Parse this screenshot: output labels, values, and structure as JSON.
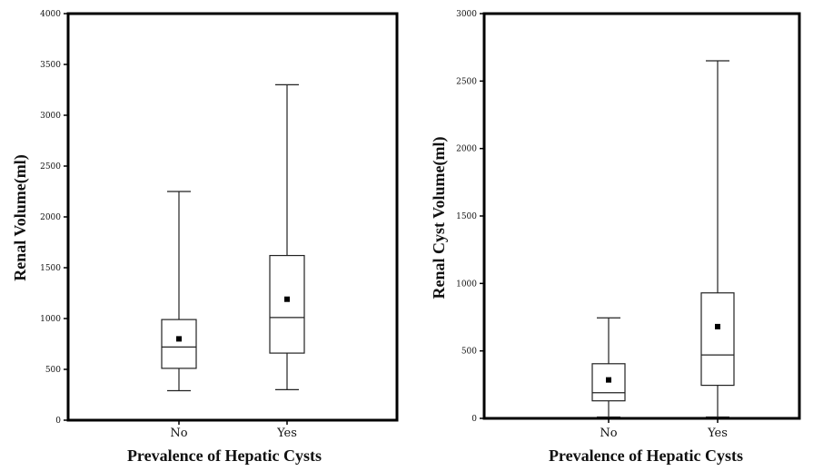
{
  "chart_data": [
    {
      "type": "box",
      "xlabel": "Prevalence of Hepatic Cysts",
      "ylabel": "Renal Volume(ml)",
      "ylim": [
        0,
        4000
      ],
      "yticks": [
        0,
        500,
        1000,
        1500,
        2000,
        2500,
        3000,
        3500,
        4000
      ],
      "ytick_labels": [
        "0",
        "500",
        "1000",
        "1500",
        "2000",
        "2500",
        "3000",
        "3500",
        "4000"
      ],
      "categories": [
        "No",
        "Yes"
      ],
      "boxes": [
        {
          "category": "No",
          "min": 290,
          "q1": 510,
          "median": 720,
          "q3": 990,
          "max": 2250,
          "mean": 800
        },
        {
          "category": "Yes",
          "min": 300,
          "q1": 660,
          "median": 1010,
          "q3": 1620,
          "max": 3300,
          "mean": 1190
        }
      ]
    },
    {
      "type": "box",
      "xlabel": "Prevalence of Hepatic Cysts",
      "ylabel": "Renal Cyst Volume(ml)",
      "ylim": [
        0,
        3000
      ],
      "yticks": [
        0,
        500,
        1000,
        1500,
        2000,
        2500,
        3000
      ],
      "ytick_labels": [
        "0",
        "500",
        "1000",
        "1500",
        "2000",
        "2500",
        "3000"
      ],
      "categories": [
        "No",
        "Yes"
      ],
      "boxes": [
        {
          "category": "No",
          "min": 10,
          "q1": 130,
          "median": 190,
          "q3": 405,
          "max": 745,
          "mean": 285
        },
        {
          "category": "Yes",
          "min": 10,
          "q1": 245,
          "median": 470,
          "q3": 930,
          "max": 2650,
          "mean": 680
        }
      ]
    }
  ]
}
